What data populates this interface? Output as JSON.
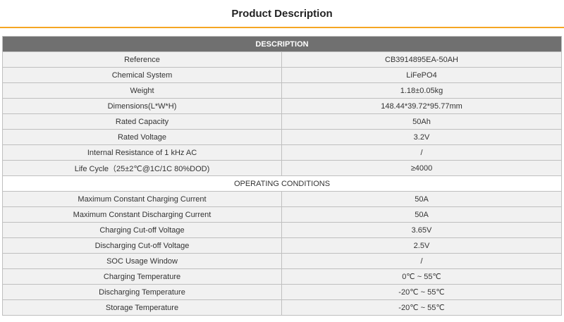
{
  "title": "Product Description",
  "description_header": "DESCRIPTION",
  "description_rows": [
    {
      "label": "Reference",
      "value": "CB3914895EA-50AH"
    },
    {
      "label": "Chemical System",
      "value": "LiFePO4"
    },
    {
      "label": "Weight",
      "value": "1.18±0.05kg"
    },
    {
      "label": "Dimensions(L*W*H)",
      "value": "148.44*39.72*95.77mm"
    },
    {
      "label": "Rated Capacity",
      "value": "50Ah"
    },
    {
      "label": "Rated Voltage",
      "value": "3.2V"
    },
    {
      "label": "Internal Resistance of 1 kHz AC",
      "value": "/"
    },
    {
      "label": "Life Cycle（25±2℃@1C/1C 80%DOD)",
      "value": "≥4000"
    }
  ],
  "operating_header": "OPERATING CONDITIONS",
  "operating_rows": [
    {
      "label": "Maximum Constant Charging Current",
      "value": "50A"
    },
    {
      "label": "Maximum Constant Discharging Current",
      "value": "50A"
    },
    {
      "label": "Charging Cut-off Voltage",
      "value": "3.65V"
    },
    {
      "label": "Discharging Cut-off Voltage",
      "value": "2.5V"
    },
    {
      "label": "SOC Usage Window",
      "value": "/"
    },
    {
      "label": "Charging Temperature",
      "value": "0℃ ~ 55℃"
    },
    {
      "label": "Discharging Temperature",
      "value": "-20℃ ~ 55℃"
    },
    {
      "label": "Storage Temperature",
      "value": "-20℃ ~ 55℃"
    }
  ],
  "colors": {
    "accent": "#f5a623",
    "header_bg": "#707070",
    "shaded_row": "#f1f1f1",
    "border": "#bfbfbf"
  }
}
